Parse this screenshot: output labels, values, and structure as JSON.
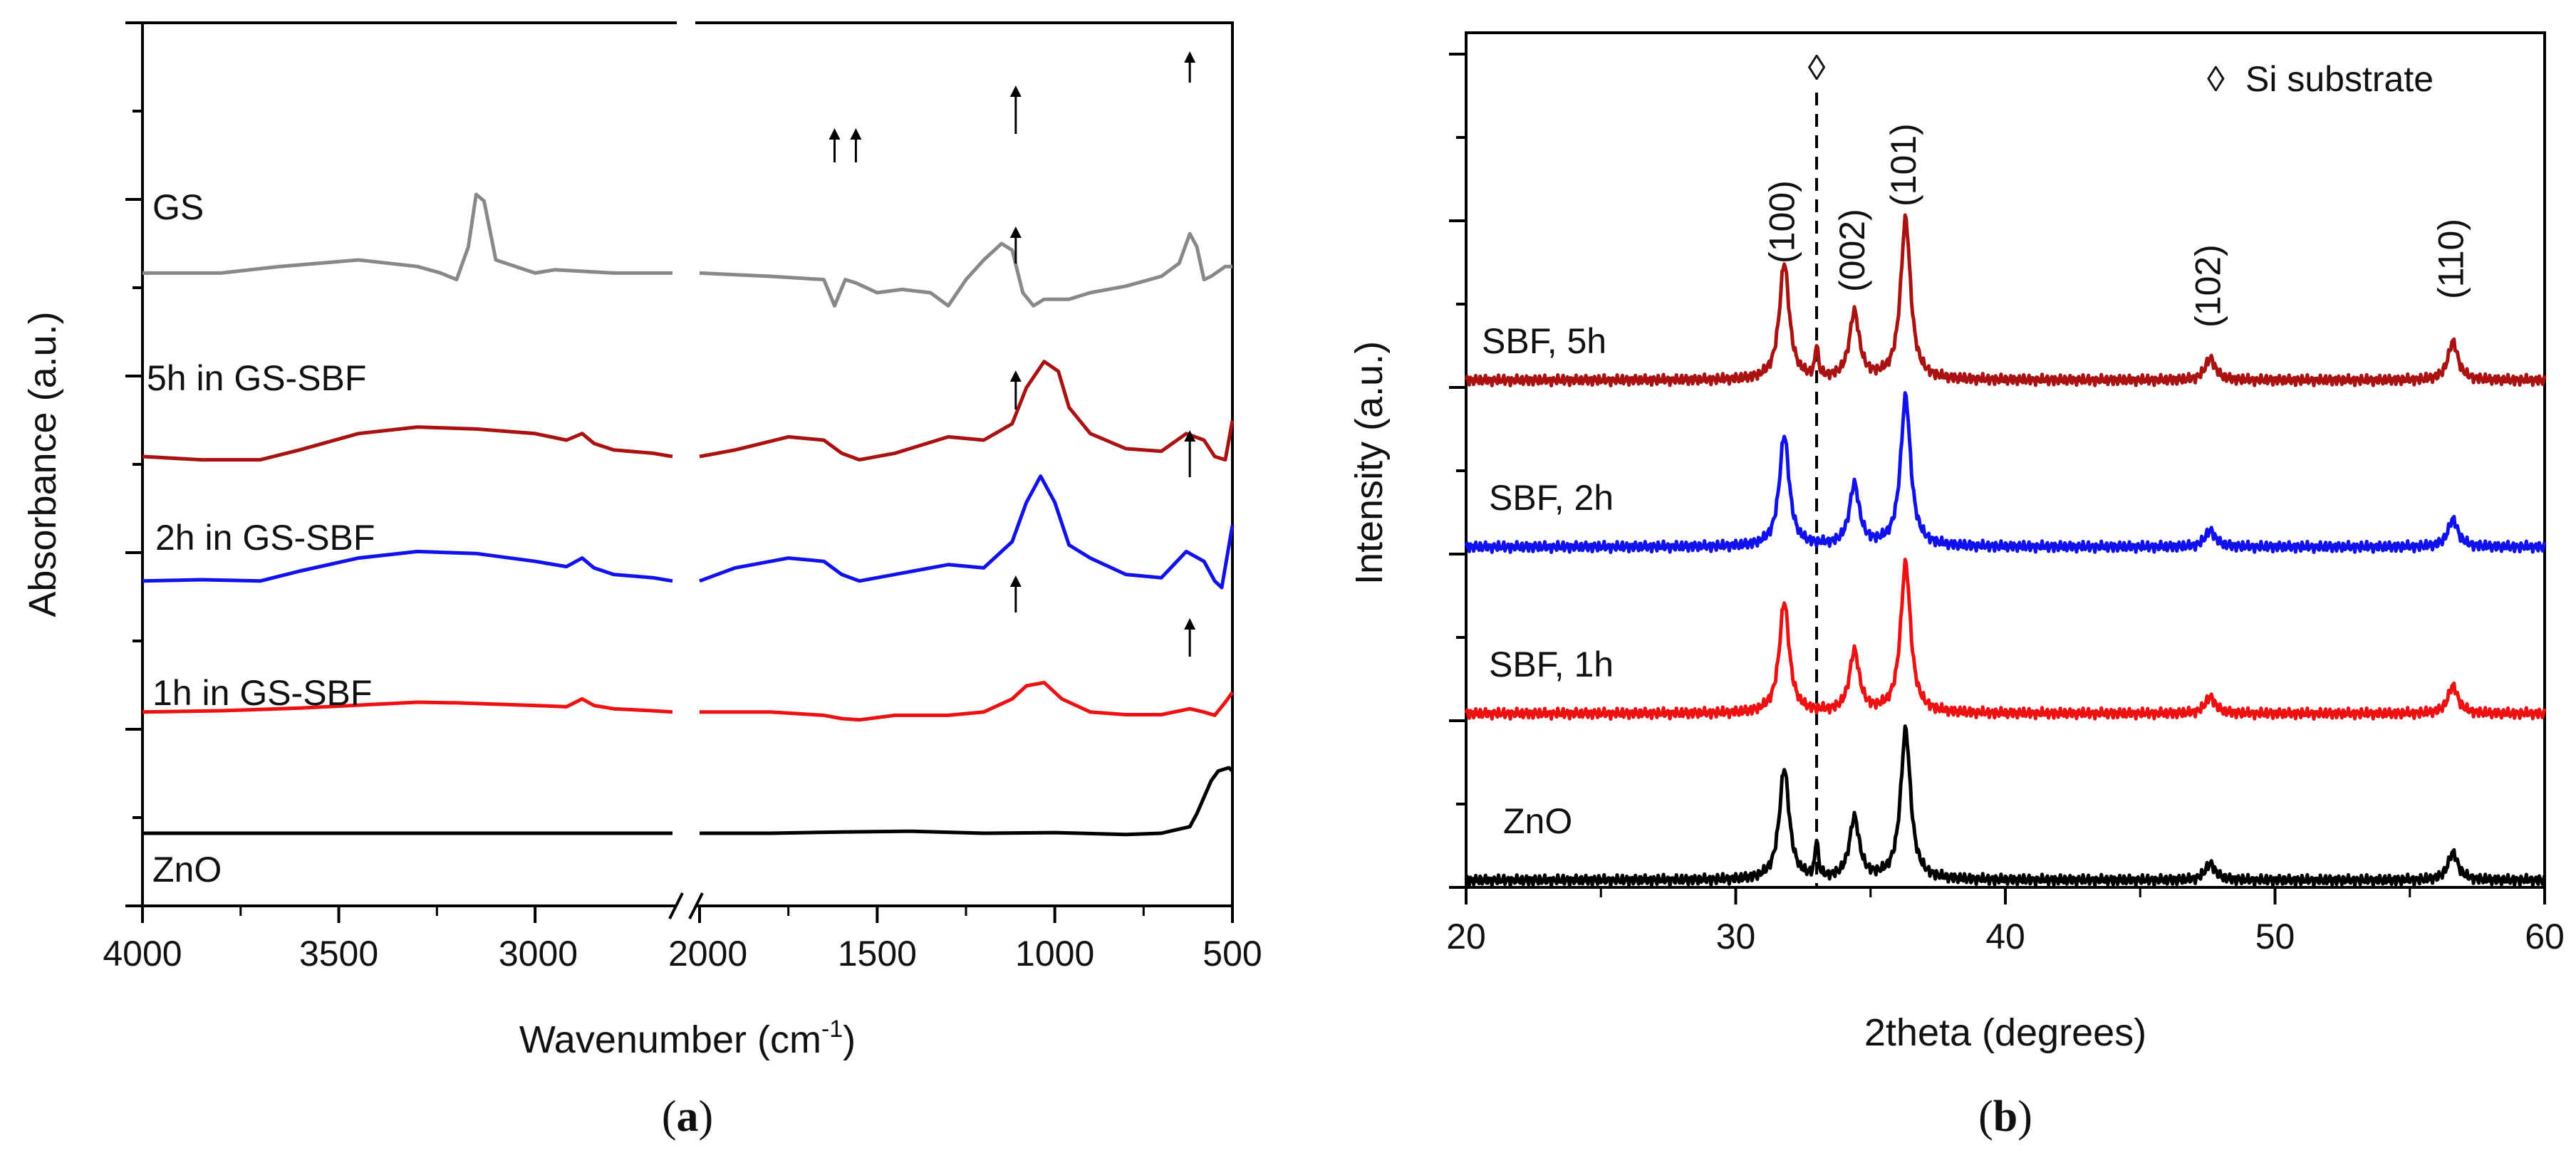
{
  "chart_data": [
    {
      "type": "line",
      "panel_label": "a",
      "title": "",
      "xlabel_main": "Wavenumber (cm",
      "xlabel_sup": "-1",
      "xlabel_close": ")",
      "ylabel": "Absorbance (a.u.)",
      "x_segments": [
        [
          4000,
          2650
        ],
        [
          2000,
          500
        ]
      ],
      "x_ticks": [
        4000,
        3500,
        3000,
        2000,
        1500,
        1000,
        500
      ],
      "axis_break": true,
      "series": [
        {
          "name": "ZnO",
          "color": "#000000",
          "offset": 0.0,
          "segment1": [
            [
              4000,
              0.0
            ],
            [
              3800,
              0.0
            ],
            [
              3600,
              0.0
            ],
            [
              3400,
              0.0
            ],
            [
              3200,
              0.0
            ],
            [
              3000,
              0.0
            ],
            [
              2800,
              0.0
            ],
            [
              2650,
              0.0
            ]
          ],
          "segment2": [
            [
              2000,
              0.0
            ],
            [
              1800,
              0.0
            ],
            [
              1600,
              0.02
            ],
            [
              1400,
              0.03
            ],
            [
              1200,
              0.0
            ],
            [
              1000,
              0.01
            ],
            [
              800,
              -0.02
            ],
            [
              700,
              0.0
            ],
            [
              620,
              0.1
            ],
            [
              600,
              0.3
            ],
            [
              560,
              0.8
            ],
            [
              540,
              0.95
            ],
            [
              510,
              1.0
            ],
            [
              500,
              0.95
            ]
          ]
        },
        {
          "name": "1h in GS-SBF",
          "color": "#ee1111",
          "offset": 1.85,
          "segment1": [
            [
              4000,
              0.0
            ],
            [
              3800,
              0.02
            ],
            [
              3600,
              0.06
            ],
            [
              3400,
              0.12
            ],
            [
              3300,
              0.15
            ],
            [
              3200,
              0.14
            ],
            [
              3000,
              0.1
            ],
            [
              2920,
              0.08
            ],
            [
              2880,
              0.2
            ],
            [
              2850,
              0.1
            ],
            [
              2800,
              0.05
            ],
            [
              2700,
              0.02
            ],
            [
              2650,
              0.0
            ]
          ],
          "segment2": [
            [
              2000,
              0.0
            ],
            [
              1800,
              0.0
            ],
            [
              1650,
              -0.05
            ],
            [
              1600,
              -0.1
            ],
            [
              1550,
              -0.12
            ],
            [
              1450,
              -0.05
            ],
            [
              1300,
              -0.05
            ],
            [
              1200,
              0.0
            ],
            [
              1120,
              0.2
            ],
            [
              1080,
              0.4
            ],
            [
              1030,
              0.45
            ],
            [
              980,
              0.2
            ],
            [
              900,
              0.0
            ],
            [
              800,
              -0.04
            ],
            [
              700,
              -0.04
            ],
            [
              620,
              0.05
            ],
            [
              580,
              0.0
            ],
            [
              550,
              -0.05
            ],
            [
              520,
              0.15
            ],
            [
              500,
              0.3
            ]
          ]
        },
        {
          "name": "2h in GS-SBF",
          "color": "#1111ee",
          "offset": 3.85,
          "segment1": [
            [
              4000,
              0.0
            ],
            [
              3850,
              0.02
            ],
            [
              3700,
              0.0
            ],
            [
              3600,
              0.15
            ],
            [
              3450,
              0.35
            ],
            [
              3300,
              0.45
            ],
            [
              3150,
              0.42
            ],
            [
              3000,
              0.3
            ],
            [
              2920,
              0.22
            ],
            [
              2880,
              0.35
            ],
            [
              2850,
              0.2
            ],
            [
              2800,
              0.1
            ],
            [
              2700,
              0.05
            ],
            [
              2650,
              0.0
            ]
          ],
          "segment2": [
            [
              2000,
              0.0
            ],
            [
              1900,
              0.2
            ],
            [
              1750,
              0.35
            ],
            [
              1650,
              0.3
            ],
            [
              1600,
              0.1
            ],
            [
              1550,
              0.0
            ],
            [
              1450,
              0.1
            ],
            [
              1300,
              0.25
            ],
            [
              1200,
              0.2
            ],
            [
              1120,
              0.6
            ],
            [
              1080,
              1.2
            ],
            [
              1040,
              1.6
            ],
            [
              1000,
              1.2
            ],
            [
              960,
              0.55
            ],
            [
              900,
              0.35
            ],
            [
              800,
              0.1
            ],
            [
              700,
              0.05
            ],
            [
              630,
              0.45
            ],
            [
              580,
              0.3
            ],
            [
              550,
              0.0
            ],
            [
              530,
              -0.1
            ],
            [
              500,
              0.85
            ]
          ]
        },
        {
          "name": "5h in GS-SBF",
          "color": "#aa1111",
          "offset": 5.75,
          "segment1": [
            [
              4000,
              0.0
            ],
            [
              3850,
              -0.05
            ],
            [
              3700,
              -0.05
            ],
            [
              3600,
              0.1
            ],
            [
              3450,
              0.35
            ],
            [
              3300,
              0.45
            ],
            [
              3150,
              0.42
            ],
            [
              3000,
              0.35
            ],
            [
              2920,
              0.25
            ],
            [
              2880,
              0.35
            ],
            [
              2850,
              0.2
            ],
            [
              2800,
              0.1
            ],
            [
              2700,
              0.05
            ],
            [
              2650,
              0.0
            ]
          ],
          "segment2": [
            [
              2000,
              0.0
            ],
            [
              1900,
              0.1
            ],
            [
              1750,
              0.3
            ],
            [
              1650,
              0.25
            ],
            [
              1600,
              0.05
            ],
            [
              1550,
              -0.05
            ],
            [
              1450,
              0.05
            ],
            [
              1300,
              0.3
            ],
            [
              1200,
              0.25
            ],
            [
              1120,
              0.5
            ],
            [
              1080,
              1.05
            ],
            [
              1030,
              1.45
            ],
            [
              990,
              1.3
            ],
            [
              960,
              0.75
            ],
            [
              900,
              0.35
            ],
            [
              800,
              0.12
            ],
            [
              700,
              0.08
            ],
            [
              630,
              0.35
            ],
            [
              580,
              0.25
            ],
            [
              550,
              0.0
            ],
            [
              520,
              -0.05
            ],
            [
              500,
              0.55
            ]
          ]
        },
        {
          "name": "GS",
          "color": "#888888",
          "offset": 8.55,
          "segment1": [
            [
              4000,
              0.0
            ],
            [
              3800,
              0.0
            ],
            [
              3650,
              0.1
            ],
            [
              3450,
              0.2
            ],
            [
              3300,
              0.1
            ],
            [
              3240,
              0.0
            ],
            [
              3200,
              -0.1
            ],
            [
              3170,
              0.4
            ],
            [
              3150,
              1.2
            ],
            [
              3130,
              1.1
            ],
            [
              3100,
              0.2
            ],
            [
              3000,
              0.0
            ],
            [
              2950,
              0.05
            ],
            [
              2800,
              0.0
            ],
            [
              2650,
              0.0
            ]
          ],
          "segment2": [
            [
              2000,
              0.0
            ],
            [
              1800,
              -0.05
            ],
            [
              1650,
              -0.1
            ],
            [
              1620,
              -0.5
            ],
            [
              1590,
              -0.1
            ],
            [
              1560,
              -0.15
            ],
            [
              1500,
              -0.3
            ],
            [
              1430,
              -0.25
            ],
            [
              1350,
              -0.3
            ],
            [
              1300,
              -0.5
            ],
            [
              1250,
              -0.1
            ],
            [
              1200,
              0.2
            ],
            [
              1150,
              0.45
            ],
            [
              1120,
              0.35
            ],
            [
              1090,
              -0.3
            ],
            [
              1060,
              -0.5
            ],
            [
              1030,
              -0.4
            ],
            [
              960,
              -0.4
            ],
            [
              900,
              -0.3
            ],
            [
              800,
              -0.2
            ],
            [
              700,
              -0.05
            ],
            [
              650,
              0.15
            ],
            [
              620,
              0.6
            ],
            [
              600,
              0.4
            ],
            [
              580,
              -0.1
            ],
            [
              560,
              -0.05
            ],
            [
              520,
              0.1
            ],
            [
              500,
              0.1
            ]
          ]
        }
      ],
      "curve_labels": [
        "GS",
        "5h in GS-SBF",
        "2h in GS-SBF",
        "1h in GS-SBF",
        "ZnO"
      ],
      "annotations": "upward arrows marking absorption bands near 1620, 1560, 1110 and 620 cm-1"
    },
    {
      "type": "line",
      "panel_label": "b",
      "title": "",
      "xlabel": "2theta (degrees)",
      "ylabel": "Intensity (a.u.)",
      "xlim": [
        20,
        60
      ],
      "x_ticks": [
        20,
        30,
        40,
        50,
        60
      ],
      "series": [
        {
          "name": "ZnO",
          "color": "#000000",
          "offset": 0.0,
          "peaks": [
            [
              31.8,
              1.0
            ],
            [
              33.0,
              0.35
            ],
            [
              34.4,
              0.55
            ],
            [
              36.3,
              1.35
            ],
            [
              47.6,
              0.15
            ],
            [
              56.6,
              0.25
            ]
          ]
        },
        {
          "name": "SBF, 1h",
          "color": "#ee1111",
          "offset": 1.5,
          "peaks": [
            [
              31.8,
              1.0
            ],
            [
              34.4,
              0.55
            ],
            [
              36.3,
              1.35
            ],
            [
              47.6,
              0.15
            ],
            [
              56.6,
              0.25
            ]
          ]
        },
        {
          "name": "SBF, 2h",
          "color": "#1111ee",
          "offset": 3.0,
          "peaks": [
            [
              31.8,
              1.0
            ],
            [
              34.4,
              0.55
            ],
            [
              36.3,
              1.35
            ],
            [
              47.6,
              0.15
            ],
            [
              56.6,
              0.25
            ]
          ]
        },
        {
          "name": "SBF, 5h",
          "color": "#aa1111",
          "offset": 4.5,
          "peaks": [
            [
              31.8,
              1.05
            ],
            [
              33.0,
              0.3
            ],
            [
              34.4,
              0.6
            ],
            [
              36.3,
              1.45
            ],
            [
              47.6,
              0.2
            ],
            [
              56.6,
              0.35
            ]
          ]
        }
      ],
      "curve_labels": [
        "SBF, 5h",
        "SBF, 2h",
        "SBF, 1h",
        "ZnO"
      ],
      "peak_labels": [
        {
          "text": "(100)",
          "x": 31.8
        },
        {
          "text": "(002)",
          "x": 34.4
        },
        {
          "text": "(101)",
          "x": 36.3
        },
        {
          "text": "(102)",
          "x": 47.6
        },
        {
          "text": "(110)",
          "x": 56.6
        }
      ],
      "reference_line": {
        "x": 33.0,
        "marker": "◊"
      },
      "legend": {
        "symbol": "◊",
        "text": "Si substrate",
        "placement": "top-right"
      }
    }
  ]
}
